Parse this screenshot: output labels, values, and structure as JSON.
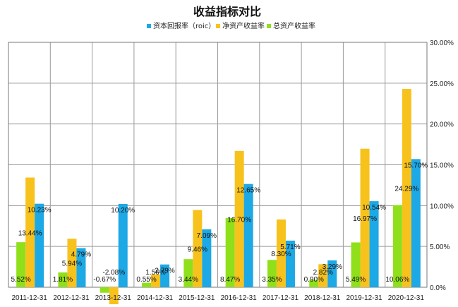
{
  "chart_data": {
    "type": "bar",
    "title": "收益指标对比",
    "categories": [
      "2011-12-31",
      "2012-12-31",
      "2013-12-31",
      "2014-12-31",
      "2015-12-31",
      "2016-12-31",
      "2017-12-31",
      "2018-12-31",
      "2019-12-31",
      "2020-12-31"
    ],
    "series": [
      {
        "name": "总资产收益率",
        "color": "#8fe01a",
        "values": [
          5.52,
          1.81,
          -0.67,
          0.55,
          3.44,
          8.47,
          3.35,
          0.9,
          5.49,
          10.06
        ],
        "labels": [
          "5.52%",
          "1.81%",
          "-0.67%",
          "0.55%",
          "3.44%",
          "8.47%",
          "3.35%",
          "0.90%",
          "5.49%",
          "10.06%"
        ]
      },
      {
        "name": "净资产收益率",
        "color": "#f8c21d",
        "values": [
          13.44,
          5.94,
          -2.08,
          1.56,
          9.46,
          16.7,
          8.3,
          2.82,
          16.97,
          24.29
        ],
        "labels": [
          "13.44%",
          "5.94%",
          "-2.08%",
          "1.56%",
          "9.46%",
          "16.70%",
          "8.30%",
          "2.82%",
          "16.97%",
          "24.29%"
        ]
      },
      {
        "name": "资本回报率（roic）",
        "color": "#1da8e6",
        "values": [
          10.23,
          4.79,
          10.2,
          2.79,
          7.09,
          12.65,
          5.71,
          3.29,
          10.54,
          15.7
        ],
        "labels": [
          "10.23%",
          "4.79%",
          "10.20%",
          "2.79%",
          "7.09%",
          "12.65%",
          "5.71%",
          "3.29%",
          "10.54%",
          "15.70%"
        ]
      }
    ],
    "legend_order": [
      2,
      1,
      0
    ],
    "legend_position": "top",
    "y_axis_position": "right",
    "ylim": [
      0,
      30
    ],
    "y_ticks": [
      "0.0%",
      "5.00%",
      "10.00%",
      "15.00%",
      "20.00%",
      "25.00%",
      "30.00%"
    ],
    "grid": true
  }
}
